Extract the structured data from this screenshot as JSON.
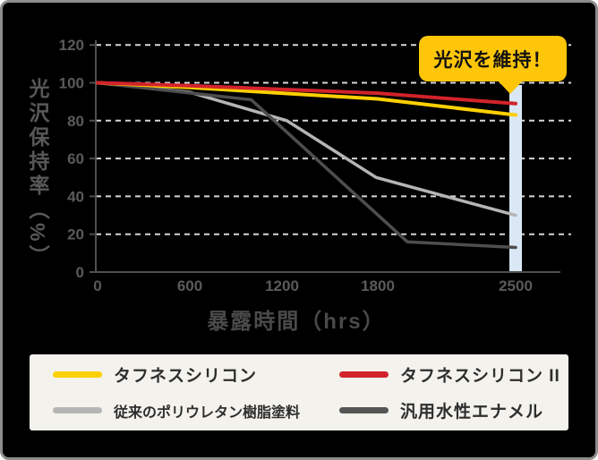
{
  "chart_data": {
    "type": "line",
    "title": "",
    "xlabel": "暴露時間（hrs）",
    "ylabel": "光沢保持率（%）",
    "xticks": [
      0,
      600,
      1200,
      1800,
      2500
    ],
    "yticks": [
      120,
      100,
      80,
      60,
      40,
      20,
      0
    ],
    "xlim": [
      0,
      2500
    ],
    "ylim": [
      0,
      120
    ],
    "grid": "horizontal-dashed",
    "legend_position": "bottom",
    "highlight_bar": {
      "x": 2500,
      "color": "#d9e8f4"
    },
    "series": [
      {
        "id": "toughness-silicon",
        "name": "タフネスシリコン",
        "color": "#fdd000",
        "points": [
          [
            0,
            100
          ],
          [
            600,
            97.5
          ],
          [
            1200,
            94.5
          ],
          [
            1800,
            91.5
          ],
          [
            2500,
            83
          ]
        ]
      },
      {
        "id": "toughness-silicon-2",
        "name": "タフネスシリコン II",
        "color": "#d2232b",
        "points": [
          [
            0,
            100
          ],
          [
            600,
            98.5
          ],
          [
            1200,
            96.5
          ],
          [
            1800,
            94.5
          ],
          [
            2500,
            89
          ]
        ]
      },
      {
        "id": "conventional-polyurethane-paint",
        "name": "従来のポリウレタン樹脂塗料",
        "color": "#b5b5b5",
        "points": [
          [
            0,
            100
          ],
          [
            600,
            95
          ],
          [
            1230,
            80
          ],
          [
            1790,
            50
          ],
          [
            2500,
            30
          ]
        ]
      },
      {
        "id": "general-purpose-water-enamel",
        "name": "汎用水性エナメル",
        "color": "#4e4e4e",
        "points": [
          [
            0,
            100
          ],
          [
            1000,
            91
          ],
          [
            1950,
            16
          ],
          [
            2500,
            13
          ]
        ]
      }
    ]
  },
  "callout": {
    "text": "光沢を維持！",
    "bg": "#fdc609",
    "text_color": "#111111"
  },
  "legend": {
    "bg": "#f3f2ec",
    "items": [
      {
        "label": "タフネスシリコン",
        "color": "#fdd000"
      },
      {
        "label": "タフネスシリコン II",
        "color": "#d2232b"
      },
      {
        "label": "従来のポリウレタン樹脂塗料",
        "color": "#b5b5b5"
      },
      {
        "label": "汎用水性エナメル",
        "color": "#555555"
      }
    ]
  },
  "colors": {
    "card_bg": "#000000",
    "card_border": "#8d8d8d",
    "grid": "#d6d6d6",
    "axis": "#4f4f4f",
    "tick_label": "#5a5a5a",
    "highlight_bar": "#d9e8f4"
  }
}
